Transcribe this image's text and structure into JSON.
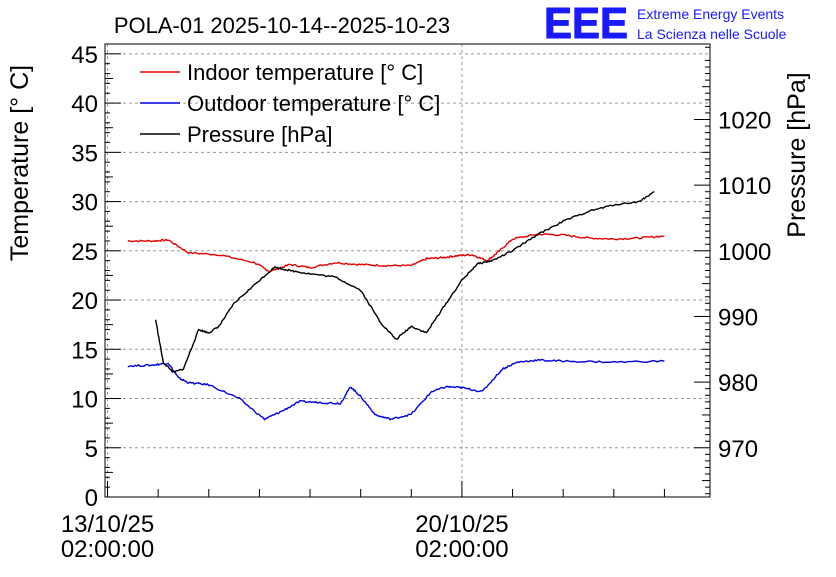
{
  "chart_data": {
    "type": "line",
    "title": "POLA-01 2025-10-14--2025-10-23",
    "logo": {
      "mark": "EEE",
      "line1": "Extreme Energy Events",
      "line2": "La Scienza nelle Scuole",
      "color": "#1a1aff"
    },
    "x_axis": {
      "unit": "days since 13/10/25 02:00:00",
      "range": [
        -0.05,
        11.9
      ],
      "ticks": [
        {
          "value": 0,
          "line1": "13/10/25",
          "line2": "02:00:00"
        },
        {
          "value": 7,
          "line1": "20/10/25",
          "line2": "02:00:00"
        }
      ]
    },
    "y_left": {
      "label": "Temperature [° C]",
      "range": [
        0,
        46
      ],
      "ticks": [
        0,
        5,
        10,
        15,
        20,
        25,
        30,
        35,
        40,
        45
      ]
    },
    "y_right": {
      "label": "Pressure [hPa]",
      "range": [
        962.5,
        1031.5
      ],
      "ticks": [
        970,
        980,
        990,
        1000,
        1010,
        1020
      ]
    },
    "grid": true,
    "legend": {
      "position": "top-left"
    },
    "series": [
      {
        "name": "Indoor temperature [° C]",
        "axis": "left",
        "color": "#e60000",
        "x": [
          0.4,
          0.9,
          1.2,
          1.6,
          2.2,
          2.9,
          3.2,
          3.6,
          4.0,
          4.5,
          5.0,
          5.5,
          6.0,
          6.3,
          6.6,
          6.9,
          7.2,
          7.5,
          7.7,
          8.0,
          8.5,
          9.0,
          9.5,
          10.0,
          10.5,
          11.0
        ],
        "values": [
          26.0,
          26.0,
          26.1,
          24.8,
          24.6,
          23.8,
          22.9,
          23.6,
          23.3,
          23.8,
          23.6,
          23.5,
          23.5,
          24.2,
          24.3,
          24.5,
          24.6,
          24.0,
          24.8,
          26.2,
          26.7,
          26.6,
          26.3,
          26.2,
          26.3,
          26.5
        ]
      },
      {
        "name": "Outdoor temperature [° C]",
        "axis": "left",
        "color": "#0000e6",
        "x": [
          0.4,
          0.9,
          1.2,
          1.4,
          1.6,
          2.0,
          2.6,
          3.1,
          3.4,
          3.8,
          4.2,
          4.6,
          4.8,
          5.0,
          5.3,
          5.6,
          6.0,
          6.4,
          6.7,
          7.0,
          7.4,
          7.8,
          8.1,
          8.5,
          9.0,
          10.0,
          11.0
        ],
        "values": [
          13.3,
          13.4,
          13.6,
          12.1,
          11.6,
          11.4,
          10.0,
          7.9,
          8.6,
          9.7,
          9.6,
          9.5,
          11.2,
          10.2,
          8.3,
          7.9,
          8.4,
          10.7,
          11.2,
          11.1,
          10.7,
          13.0,
          13.7,
          13.9,
          13.8,
          13.7,
          13.8
        ]
      },
      {
        "name": "Pressure [hPa]",
        "axis": "right",
        "color": "#000000",
        "x": [
          0.95,
          1.1,
          1.3,
          1.5,
          1.8,
          2.0,
          2.2,
          2.5,
          3.0,
          3.3,
          3.6,
          4.0,
          4.5,
          5.0,
          5.4,
          5.7,
          6.0,
          6.3,
          6.6,
          7.0,
          7.3,
          7.6,
          8.0,
          8.5,
          9.0,
          9.5,
          10.0,
          10.5,
          10.8
        ],
        "values": [
          989.5,
          983.0,
          981.5,
          982.0,
          988.0,
          987.5,
          988.5,
          992.0,
          995.5,
          997.5,
          997.0,
          996.5,
          996.0,
          994.0,
          989.0,
          986.5,
          988.5,
          987.5,
          991.0,
          995.5,
          998.0,
          998.5,
          1000.0,
          1002.5,
          1004.5,
          1006.0,
          1007.0,
          1007.5,
          1009.0
        ]
      }
    ]
  }
}
